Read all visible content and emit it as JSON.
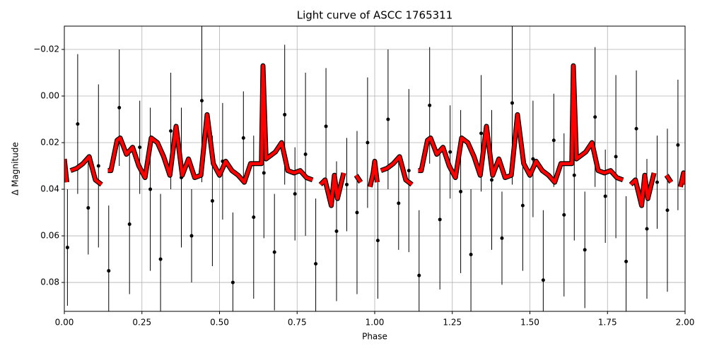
{
  "chart_data": {
    "type": "scatter",
    "title": "Light curve of ASCC 1765311",
    "x_label": "Phase",
    "y_label": "Δ Magnitude",
    "xlim": [
      0,
      2
    ],
    "ylim": [
      0.0924,
      -0.03
    ],
    "y_inverted": true,
    "grid": true,
    "xticks": [
      {
        "value": 0,
        "label": "0.00"
      },
      0.25,
      {
        "value": 0.5,
        "label": "0.50"
      },
      0.75,
      {
        "value": 1,
        "label": "1.00"
      },
      1.25,
      {
        "value": 1.5,
        "label": "1.50"
      },
      1.75,
      {
        "value": 2,
        "label": "2.00"
      }
    ],
    "yticks": [
      {
        "value": -0.02,
        "label": "−0.02"
      },
      {
        "value": 0,
        "label": "0.00"
      },
      0.02,
      0.04,
      0.06,
      0.08
    ],
    "points": {
      "color": "#000000",
      "x": [
        0.01,
        0.043,
        0.077,
        0.11,
        0.143,
        0.177,
        0.21,
        0.243,
        0.277,
        0.31,
        0.343,
        0.377,
        0.41,
        0.443,
        0.477,
        0.51,
        0.543,
        0.577,
        0.61,
        0.643,
        0.677,
        0.71,
        0.743,
        0.777,
        0.81,
        0.843,
        0.877,
        0.91,
        0.943,
        0.977,
        1.01,
        1.043,
        1.077,
        1.11,
        1.143,
        1.177,
        1.21,
        1.243,
        1.277,
        1.31,
        1.343,
        1.377,
        1.41,
        1.443,
        1.477,
        1.51,
        1.543,
        1.577,
        1.61,
        1.643,
        1.677,
        1.71,
        1.743,
        1.777,
        1.81,
        1.843,
        1.877,
        1.91,
        1.943,
        1.977
      ],
      "values": [
        0.065,
        0.012,
        0.048,
        0.03,
        0.075,
        0.005,
        0.055,
        0.022,
        0.04,
        0.07,
        0.015,
        0.035,
        0.06,
        0.002,
        0.045,
        0.028,
        0.08,
        0.018,
        0.052,
        0.033,
        0.067,
        0.008,
        0.042,
        0.025,
        0.072,
        0.013,
        0.058,
        0.038,
        0.05,
        0.02,
        0.062,
        0.01,
        0.046,
        0.032,
        0.077,
        0.004,
        0.053,
        0.024,
        0.041,
        0.068,
        0.016,
        0.036,
        0.061,
        0.003,
        0.047,
        0.027,
        0.079,
        0.019,
        0.051,
        0.034,
        0.066,
        0.009,
        0.043,
        0.026,
        0.071,
        0.014,
        0.057,
        0.037,
        0.049,
        0.021
      ],
      "errors": [
        0.025,
        0.03,
        0.02,
        0.035,
        0.028,
        0.025,
        0.03,
        0.02,
        0.035,
        0.028,
        0.025,
        0.03,
        0.02,
        0.035,
        0.028,
        0.025,
        0.03,
        0.02,
        0.035,
        0.028,
        0.025,
        0.03,
        0.02,
        0.035,
        0.028,
        0.025,
        0.03,
        0.02,
        0.035,
        0.028,
        0.025,
        0.03,
        0.02,
        0.035,
        0.028,
        0.025,
        0.03,
        0.02,
        0.035,
        0.028,
        0.025,
        0.03,
        0.02,
        0.035,
        0.028,
        0.025,
        0.03,
        0.02,
        0.035,
        0.028,
        0.025,
        0.03,
        0.02,
        0.035,
        0.028,
        0.025,
        0.03,
        0.02,
        0.035,
        0.028
      ]
    },
    "binned": {
      "color": "#ff0000",
      "x": [
        0.0,
        0.008,
        0.012,
        0.02,
        0.04,
        0.06,
        0.08,
        0.1,
        0.12,
        0.13,
        0.14,
        0.15,
        0.17,
        0.18,
        0.2,
        0.22,
        0.24,
        0.26,
        0.28,
        0.3,
        0.32,
        0.34,
        0.36,
        0.38,
        0.4,
        0.42,
        0.44,
        0.46,
        0.48,
        0.5,
        0.52,
        0.54,
        0.56,
        0.58,
        0.6,
        0.62,
        0.635,
        0.64,
        0.65,
        0.68,
        0.7,
        0.72,
        0.74,
        0.76,
        0.78,
        0.8,
        0.815,
        0.825,
        0.84,
        0.86,
        0.87,
        0.88,
        0.9,
        0.92,
        0.94,
        0.955,
        0.97,
        0.985,
        0.995,
        1.0,
        1.008,
        1.012,
        1.02,
        1.04,
        1.06,
        1.08,
        1.1,
        1.12,
        1.13,
        1.14,
        1.15,
        1.17,
        1.18,
        1.2,
        1.22,
        1.24,
        1.26,
        1.28,
        1.3,
        1.32,
        1.34,
        1.36,
        1.38,
        1.4,
        1.42,
        1.44,
        1.46,
        1.48,
        1.5,
        1.52,
        1.54,
        1.56,
        1.58,
        1.6,
        1.62,
        1.635,
        1.64,
        1.65,
        1.68,
        1.7,
        1.72,
        1.74,
        1.76,
        1.78,
        1.8,
        1.815,
        1.825,
        1.84,
        1.86,
        1.87,
        1.88,
        1.9,
        1.92,
        1.94,
        1.955,
        1.97,
        1.985,
        1.995,
        2.0
      ],
      "values": [
        0.027,
        0.037,
        null,
        0.032,
        0.031,
        0.029,
        0.026,
        0.036,
        0.038,
        null,
        0.032,
        0.032,
        0.019,
        0.018,
        0.025,
        0.022,
        0.03,
        0.035,
        0.018,
        0.02,
        0.026,
        0.034,
        0.013,
        0.034,
        0.027,
        0.035,
        0.034,
        0.008,
        0.029,
        0.034,
        0.028,
        0.032,
        0.034,
        0.037,
        0.029,
        0.029,
        0.029,
        -0.013,
        0.027,
        0.024,
        0.02,
        0.032,
        0.033,
        0.032,
        0.035,
        0.036,
        null,
        0.038,
        0.036,
        0.047,
        0.034,
        0.044,
        0.033,
        null,
        0.034,
        0.037,
        null,
        0.039,
        0.033,
        0.028,
        0.037,
        null,
        0.032,
        0.031,
        0.029,
        0.026,
        0.036,
        0.038,
        null,
        0.032,
        0.032,
        0.019,
        0.018,
        0.025,
        0.022,
        0.03,
        0.035,
        0.018,
        0.02,
        0.026,
        0.034,
        0.013,
        0.034,
        0.027,
        0.035,
        0.034,
        0.008,
        0.029,
        0.034,
        0.028,
        0.032,
        0.034,
        0.037,
        0.029,
        0.029,
        0.029,
        -0.013,
        0.027,
        0.024,
        0.02,
        0.032,
        0.033,
        0.032,
        0.035,
        0.036,
        null,
        0.038,
        0.036,
        0.047,
        0.034,
        0.044,
        0.033,
        null,
        0.034,
        0.037,
        null,
        0.039,
        0.033,
        0.038
      ]
    }
  }
}
